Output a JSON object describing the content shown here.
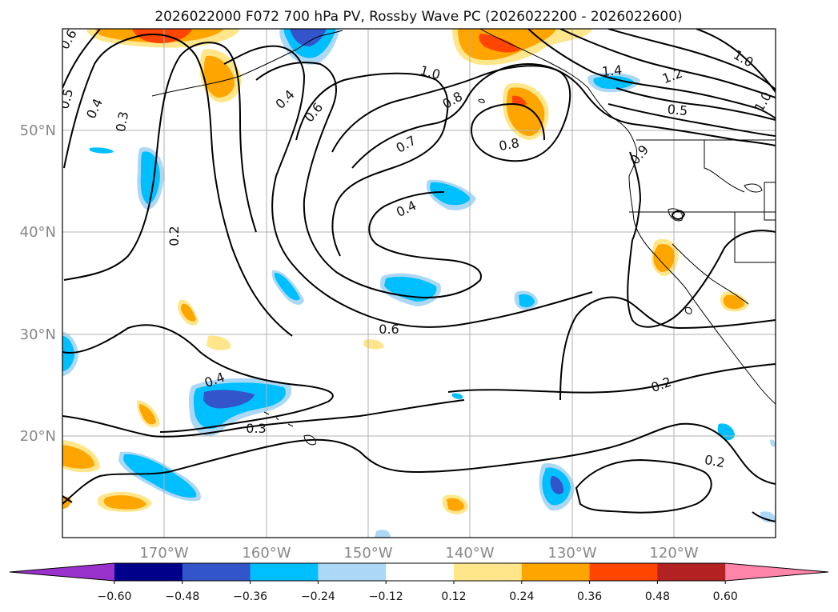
{
  "map": {
    "title": "2026022000 F072 700 hPa PV, Rossby Wave PC (2026022200 - 2026022600)",
    "lon_labels": [
      "170°W",
      "160°W",
      "150°W",
      "140°W",
      "130°W",
      "120°W"
    ],
    "lat_labels": [
      "50°N",
      "40°N",
      "30°N",
      "20°N"
    ],
    "contour_labels": [
      "0.6",
      "0.5",
      "0.4",
      "0.3",
      "0.2",
      "0.4",
      "0.6",
      "1.0",
      "0.8",
      "0.7",
      "0.8",
      "0.4",
      "0.6",
      "0.4",
      "0.3",
      "0.2",
      "0.2",
      "1.4",
      "1.2",
      "1.0",
      "0.5",
      "1.0",
      "0.9"
    ],
    "colorbar": {
      "ticks": [
        "−0.60",
        "−0.48",
        "−0.36",
        "−0.24",
        "−0.12",
        "0.12",
        "0.24",
        "0.36",
        "0.48",
        "0.60"
      ],
      "under_color": "#9932cc",
      "colors": [
        "#9932cc",
        "#00008b",
        "#3355cc",
        "#00bfff",
        "#add8f5",
        "#ffffff",
        "#ffe68a",
        "#ffa500",
        "#ff4500",
        "#b22222",
        "#ff85aa"
      ],
      "over_color": "#ff85aa"
    },
    "grid": true
  }
}
